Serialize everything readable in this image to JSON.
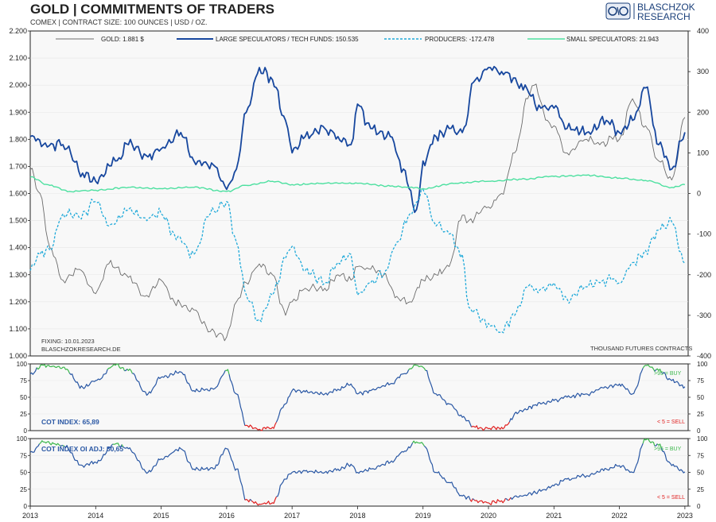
{
  "header": {
    "title": "GOLD | COMMITMENTS OF TRADERS",
    "subtitle": "COMEX | CONTRACT SIZE: 100 OUNCES | USD / OZ.",
    "logo_line1": "BLASCHZOK",
    "logo_line2": "RESEARCH"
  },
  "footer_left": {
    "fixing": "FIXING: 10.01.2023",
    "site": "BLASCHZOKRESEARCH.DE"
  },
  "units_note": "THOUSAND  FUTURES  CONTRACTS",
  "colors": {
    "gold": "#6b6b6b",
    "large_specs": "#17479e",
    "producers": "#1fa9d9",
    "small_specs": "#4de0a0",
    "cot_line": "#2957a4",
    "buy": "#3cb84c",
    "sell": "#e02020"
  },
  "chart_data": [
    {
      "type": "line",
      "title": "GOLD | COMMITMENTS OF TRADERS",
      "subtitle": "COMEX | CONTRACT SIZE: 100 OUNCES | USD / OZ.",
      "x_range": [
        2013.0,
        2023.05
      ],
      "x_ticks": [
        "2013",
        "2014",
        "2015",
        "2016",
        "2017",
        "2018",
        "2019",
        "2020",
        "2021",
        "2022",
        "2023"
      ],
      "y_left": {
        "ylim": [
          1.0,
          2.2
        ],
        "ticks": [
          "1.000",
          "1.100",
          "1.200",
          "1.300",
          "1.400",
          "1.500",
          "1.600",
          "1.700",
          "1.800",
          "1.900",
          "2.000",
          "2.100",
          "2.200"
        ]
      },
      "y_right": {
        "ylim": [
          -400,
          400
        ],
        "ticks": [
          "-400",
          "-300",
          "-200",
          "-100",
          "0",
          "100",
          "200",
          "300",
          "400"
        ]
      },
      "legend": [
        "GOLD: 1.881 $",
        "LARGE SPECULATORS / TECH FUNDS: 150.535",
        "PRODUCERS: -172.478",
        "SMALL SPECULATORS: 21.943"
      ],
      "legend_position": "top",
      "series": [
        {
          "name": "GOLD: 1.881 $",
          "axis": "left",
          "style": "solid-thin",
          "x": [
            2013.0,
            2013.15,
            2013.3,
            2013.5,
            2013.75,
            2014.0,
            2014.2,
            2014.5,
            2014.75,
            2015.0,
            2015.2,
            2015.5,
            2015.75,
            2016.0,
            2016.15,
            2016.3,
            2016.5,
            2016.7,
            2016.9,
            2017.0,
            2017.2,
            2017.5,
            2017.7,
            2017.9,
            2018.0,
            2018.2,
            2018.4,
            2018.6,
            2018.8,
            2019.0,
            2019.2,
            2019.4,
            2019.6,
            2019.7,
            2020.0,
            2020.2,
            2020.4,
            2020.6,
            2020.7,
            2020.9,
            2021.0,
            2021.2,
            2021.5,
            2021.7,
            2021.9,
            2022.0,
            2022.2,
            2022.4,
            2022.6,
            2022.8,
            2023.0
          ],
          "y": [
            1.69,
            1.6,
            1.4,
            1.28,
            1.32,
            1.23,
            1.34,
            1.29,
            1.22,
            1.28,
            1.2,
            1.17,
            1.09,
            1.07,
            1.2,
            1.27,
            1.34,
            1.3,
            1.15,
            1.2,
            1.25,
            1.25,
            1.3,
            1.28,
            1.33,
            1.32,
            1.3,
            1.22,
            1.2,
            1.28,
            1.3,
            1.33,
            1.52,
            1.5,
            1.55,
            1.6,
            1.75,
            1.95,
            2.0,
            1.87,
            1.85,
            1.75,
            1.8,
            1.78,
            1.8,
            1.8,
            1.95,
            1.85,
            1.72,
            1.65,
            1.881
          ]
        },
        {
          "name": "LARGE SPECULATORS / TECH FUNDS: 150.535",
          "axis": "right",
          "style": "solid-thick",
          "x": [
            2013.0,
            2013.2,
            2013.5,
            2013.8,
            2014.0,
            2014.3,
            2014.5,
            2014.8,
            2015.0,
            2015.3,
            2015.5,
            2015.8,
            2016.0,
            2016.15,
            2016.3,
            2016.5,
            2016.7,
            2016.9,
            2017.0,
            2017.2,
            2017.5,
            2017.7,
            2017.9,
            2018.0,
            2018.2,
            2018.5,
            2018.7,
            2018.9,
            2019.0,
            2019.2,
            2019.4,
            2019.6,
            2019.8,
            2020.0,
            2020.2,
            2020.5,
            2020.8,
            2021.0,
            2021.2,
            2021.5,
            2021.8,
            2022.0,
            2022.2,
            2022.4,
            2022.6,
            2022.8,
            2023.0
          ],
          "y": [
            140,
            120,
            120,
            50,
            30,
            80,
            120,
            90,
            110,
            150,
            80,
            70,
            10,
            60,
            200,
            310,
            280,
            180,
            100,
            140,
            160,
            140,
            120,
            220,
            160,
            140,
            60,
            -40,
            80,
            140,
            160,
            150,
            280,
            310,
            300,
            270,
            210,
            210,
            160,
            150,
            180,
            150,
            180,
            260,
            120,
            60,
            150.535
          ]
        },
        {
          "name": "PRODUCERS: -172.478",
          "axis": "right",
          "style": "dashed",
          "x": [
            2013.0,
            2013.15,
            2013.3,
            2013.5,
            2013.75,
            2014.0,
            2014.2,
            2014.5,
            2014.75,
            2015.0,
            2015.2,
            2015.5,
            2015.75,
            2016.0,
            2016.15,
            2016.3,
            2016.5,
            2016.7,
            2016.9,
            2017.0,
            2017.2,
            2017.5,
            2017.7,
            2017.9,
            2018.0,
            2018.2,
            2018.4,
            2018.6,
            2018.8,
            2019.0,
            2019.2,
            2019.4,
            2019.6,
            2019.7,
            2020.0,
            2020.2,
            2020.4,
            2020.6,
            2020.7,
            2020.9,
            2021.0,
            2021.2,
            2021.5,
            2021.7,
            2021.9,
            2022.0,
            2022.2,
            2022.4,
            2022.6,
            2022.8,
            2023.0
          ],
          "y": [
            -190,
            -150,
            -140,
            -50,
            -60,
            -20,
            -80,
            -40,
            -60,
            -50,
            -100,
            -150,
            -50,
            -20,
            -120,
            -250,
            -310,
            -250,
            -160,
            -130,
            -190,
            -220,
            -170,
            -150,
            -250,
            -220,
            -200,
            -120,
            -50,
            10,
            -80,
            -100,
            -150,
            -280,
            -320,
            -340,
            -300,
            -230,
            -240,
            -230,
            -220,
            -260,
            -230,
            -220,
            -210,
            -220,
            -170,
            -140,
            -90,
            -70,
            -172.478
          ]
        },
        {
          "name": "SMALL SPECULATORS: 21.943",
          "axis": "right",
          "style": "solid-thin",
          "x": [
            2013.0,
            2013.3,
            2013.6,
            2014.0,
            2014.5,
            2015.0,
            2015.5,
            2016.0,
            2016.3,
            2016.7,
            2017.0,
            2017.5,
            2018.0,
            2018.5,
            2018.8,
            2019.0,
            2019.5,
            2020.0,
            2020.5,
            2021.0,
            2021.5,
            2022.0,
            2022.4,
            2022.8,
            2023.0
          ],
          "y": [
            40,
            20,
            5,
            8,
            15,
            12,
            15,
            5,
            20,
            30,
            22,
            25,
            25,
            18,
            15,
            12,
            25,
            30,
            35,
            42,
            45,
            38,
            32,
            15,
            21.943
          ]
        }
      ]
    },
    {
      "type": "line",
      "title": "COT INDEX: 65,89",
      "x_range": [
        2013.0,
        2023.05
      ],
      "ylim": [
        0,
        100
      ],
      "y_ticks": [
        "0",
        "25",
        "50",
        "75",
        "100"
      ],
      "annotations": [
        ">95 = BUY",
        "< 5 = SELL"
      ],
      "series": [
        {
          "name": "COT INDEX: 65,89",
          "x": [
            2013.0,
            2013.2,
            2013.5,
            2013.8,
            2014.0,
            2014.3,
            2014.5,
            2014.8,
            2015.0,
            2015.3,
            2015.5,
            2015.8,
            2016.0,
            2016.15,
            2016.3,
            2016.5,
            2016.7,
            2016.9,
            2017.0,
            2017.2,
            2017.5,
            2017.7,
            2017.9,
            2018.0,
            2018.2,
            2018.5,
            2018.7,
            2018.9,
            2019.0,
            2019.2,
            2019.4,
            2019.6,
            2019.8,
            2020.0,
            2020.2,
            2020.5,
            2020.8,
            2021.0,
            2021.2,
            2021.5,
            2021.8,
            2022.0,
            2022.2,
            2022.4,
            2022.6,
            2022.8,
            2023.0
          ],
          "y": [
            85,
            98,
            95,
            65,
            75,
            98,
            90,
            55,
            80,
            88,
            60,
            62,
            90,
            55,
            8,
            2,
            5,
            40,
            60,
            58,
            55,
            62,
            70,
            55,
            60,
            70,
            85,
            98,
            95,
            55,
            40,
            20,
            5,
            3,
            5,
            30,
            40,
            45,
            50,
            55,
            65,
            70,
            55,
            98,
            90,
            75,
            65.89
          ]
        }
      ]
    },
    {
      "type": "line",
      "title": "COT INDEX OI ADJ: 50,65",
      "x_range": [
        2013.0,
        2023.05
      ],
      "ylim": [
        0,
        100
      ],
      "y_ticks": [
        "0",
        "25",
        "50",
        "75",
        "100"
      ],
      "annotations": [
        ">95 = BUY",
        "< 5 = SELL"
      ],
      "series": [
        {
          "name": "COT INDEX OI ADJ: 50,65",
          "x": [
            2013.0,
            2013.2,
            2013.5,
            2013.8,
            2014.0,
            2014.3,
            2014.5,
            2014.8,
            2015.0,
            2015.3,
            2015.5,
            2015.8,
            2016.0,
            2016.15,
            2016.3,
            2016.5,
            2016.7,
            2016.9,
            2017.0,
            2017.2,
            2017.5,
            2017.7,
            2017.9,
            2018.0,
            2018.2,
            2018.5,
            2018.7,
            2018.9,
            2019.0,
            2019.2,
            2019.4,
            2019.6,
            2019.8,
            2020.0,
            2020.2,
            2020.5,
            2020.8,
            2021.0,
            2021.2,
            2021.5,
            2021.8,
            2022.0,
            2022.2,
            2022.4,
            2022.6,
            2022.8,
            2023.0
          ],
          "y": [
            80,
            95,
            90,
            60,
            65,
            92,
            85,
            50,
            70,
            85,
            55,
            55,
            85,
            55,
            10,
            3,
            5,
            40,
            50,
            52,
            50,
            55,
            62,
            50,
            55,
            65,
            80,
            95,
            92,
            50,
            35,
            15,
            8,
            5,
            8,
            15,
            22,
            30,
            40,
            45,
            55,
            60,
            50,
            98,
            90,
            60,
            50.65
          ]
        }
      ]
    }
  ]
}
